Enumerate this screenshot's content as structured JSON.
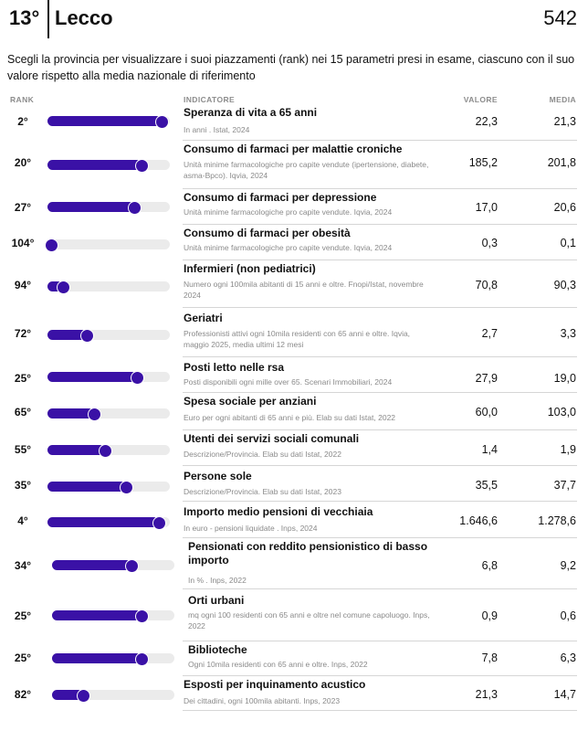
{
  "header": {
    "rank": "13°",
    "province": "Lecco",
    "score": "542"
  },
  "intro": "Scegli la provincia per visualizzare i suoi piazzamenti (rank) nei 15 parametri presi in esame, ciascuno con il suo valore rispetto alla media nazionale di riferimento",
  "columns": {
    "rank": "RANK",
    "indicator": "INDICATORE",
    "value": "VALORE",
    "average": "MEDIA"
  },
  "accent_color": "#3a11a6",
  "track_color": "#ebebeb",
  "rows": [
    {
      "rank": "2°",
      "bar_level": 0.93,
      "title": "Speranza di vita a 65 anni",
      "source": "In anni . Istat, 2024",
      "value": "22,3",
      "average": "21,3"
    },
    {
      "rank": "20°",
      "bar_level": 0.77,
      "title": "Consumo di farmaci per malattie croniche",
      "source": "Unità minime farmacologiche pro capite vendute (ipertensione, diabete, asma-Bpco). Iqvia, 2024",
      "value": "185,2",
      "average": "201,8"
    },
    {
      "rank": "27°",
      "bar_level": 0.71,
      "title": "Consumo di farmaci per depressione",
      "source": "Unità minime farmacologiche pro capite vendute. Iqvia, 2024",
      "value": "17,0",
      "average": "20,6"
    },
    {
      "rank": "104°",
      "bar_level": 0.03,
      "title": "Consumo di farmaci per obesità",
      "source": "Unità minime farmacologiche pro capite vendute. Iqvia, 2024",
      "value": "0,3",
      "average": "0,1"
    },
    {
      "rank": "94°",
      "bar_level": 0.13,
      "title": "Infermieri (non pediatrici)",
      "source": "Numero ogni 100mila abitanti di 15 anni e oltre. Fnopi/Istat, novembre 2024",
      "value": "70,8",
      "average": "90,3"
    },
    {
      "rank": "72°",
      "bar_level": 0.32,
      "title": "Geriatri",
      "source": "Professionisti attivi ogni 10mila residenti con 65 anni e oltre. Iqvia, maggio 2025, media ultimi 12 mesi",
      "value": "2,7",
      "average": "3,3"
    },
    {
      "rank": "25°",
      "bar_level": 0.73,
      "title": "Posti letto nelle rsa",
      "source": "Posti disponibili ogni mille over 65. Scenari Immobiliari, 2024",
      "value": "27,9",
      "average": "19,0"
    },
    {
      "rank": "65°",
      "bar_level": 0.38,
      "title": "Spesa sociale per anziani",
      "source": "Euro per ogni abitanti di 65 anni e più. Elab su dati Istat, 2022",
      "value": "60,0",
      "average": "103,0"
    },
    {
      "rank": "55°",
      "bar_level": 0.47,
      "title": "Utenti dei servizi sociali comunali",
      "source": "Descrizione/Provincia. Elab su dati Istat, 2022",
      "value": "1,4",
      "average": "1,9"
    },
    {
      "rank": "35°",
      "bar_level": 0.64,
      "title": "Persone sole",
      "source": "Descrizione/Provincia. Elab su dati Istat, 2023",
      "value": "35,5",
      "average": "37,7"
    },
    {
      "rank": "4°",
      "bar_level": 0.91,
      "title": "Importo medio pensioni di vecchiaia",
      "source": "In euro - pensioni liquidate . Inps, 2024",
      "value": "1.646,6",
      "average": "1.278,6"
    },
    {
      "rank": "34°",
      "bar_level": 0.65,
      "title": "Pensionati con reddito pensionistico di basso importo",
      "source": "In % . Inps, 2022",
      "value": "6,8",
      "average": "9,2"
    },
    {
      "rank": "25°",
      "bar_level": 0.73,
      "title": "Orti urbani",
      "source": "mq ogni 100 residenti con 65 anni e oltre nel comune capoluogo. Inps, 2022",
      "value": "0,9",
      "average": "0,6"
    },
    {
      "rank": "25°",
      "bar_level": 0.73,
      "title": "Biblioteche",
      "source": "Ogni 10mila residenti con 65 anni e oltre. Inps, 2022",
      "value": "7,8",
      "average": "6,3"
    },
    {
      "rank": "82°",
      "bar_level": 0.25,
      "title": "Esposti per inquinamento acustico",
      "source": "Dei cittadini, ogni 100mila abitanti. Inps, 2023",
      "value": "21,3",
      "average": "14,7"
    }
  ]
}
